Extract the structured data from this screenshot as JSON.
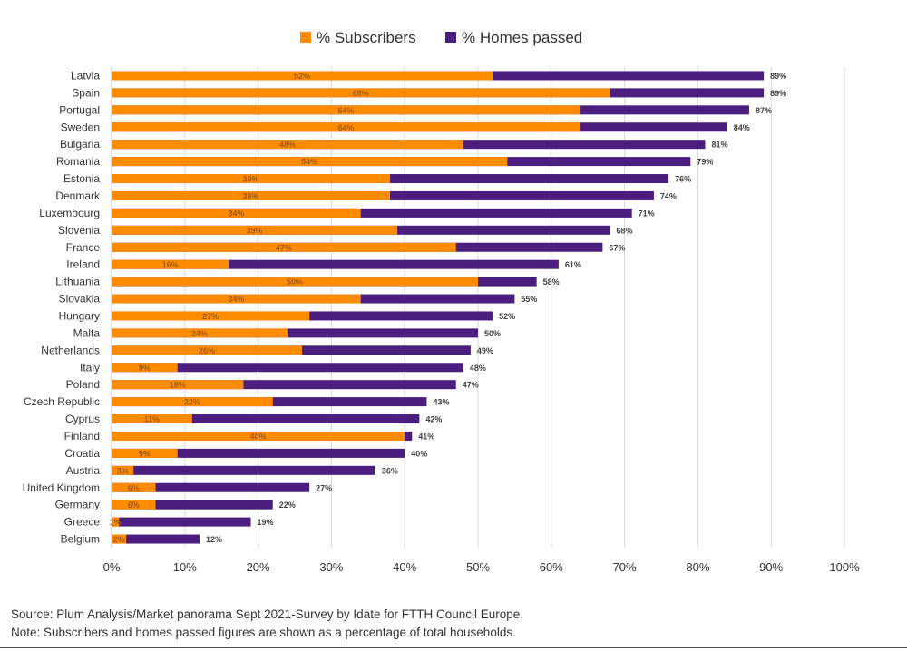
{
  "chart_data": {
    "type": "bar",
    "orientation": "horizontal",
    "overlay": true,
    "categories": [
      "Latvia",
      "Spain",
      "Portugal",
      "Sweden",
      "Bulgaria",
      "Romania",
      "Estonia",
      "Denmark",
      "Luxembourg",
      "Slovenia",
      "France",
      "Ireland",
      "Lithuania",
      "Slovakia",
      "Hungary",
      "Malta",
      "Netherlands",
      "Italy",
      "Poland",
      "Czech Republic",
      "Cyprus",
      "Finland",
      "Croatia",
      "Austria",
      "United Kingdom",
      "Germany",
      "Greece",
      "Belgium"
    ],
    "series": [
      {
        "name": "% Subscribers",
        "color": "#ff8c00",
        "values": [
          52,
          68,
          64,
          64,
          48,
          54,
          38,
          38,
          34,
          39,
          47,
          16,
          50,
          34,
          27,
          24,
          26,
          9,
          18,
          22,
          11,
          40,
          9,
          3,
          6,
          6,
          1,
          2
        ]
      },
      {
        "name": "% Homes passed",
        "color": "#4b1d7f",
        "values": [
          89,
          89,
          87,
          84,
          81,
          79,
          76,
          74,
          71,
          68,
          67,
          61,
          58,
          55,
          52,
          50,
          49,
          48,
          47,
          43,
          42,
          41,
          40,
          36,
          27,
          22,
          19,
          12
        ]
      }
    ],
    "xlim": [
      0,
      100
    ],
    "xticks": [
      "0%",
      "10%",
      "20%",
      "30%",
      "40%",
      "50%",
      "60%",
      "70%",
      "80%",
      "90%",
      "100%"
    ],
    "grid": "vertical",
    "legend_position": "top-center"
  },
  "footer": {
    "source": "Source: Plum Analysis/Market panorama Sept 2021-Survey by Idate for FTTH Council Europe.",
    "note": "Note: Subscribers and homes passed figures are shown as a percentage of total households."
  }
}
